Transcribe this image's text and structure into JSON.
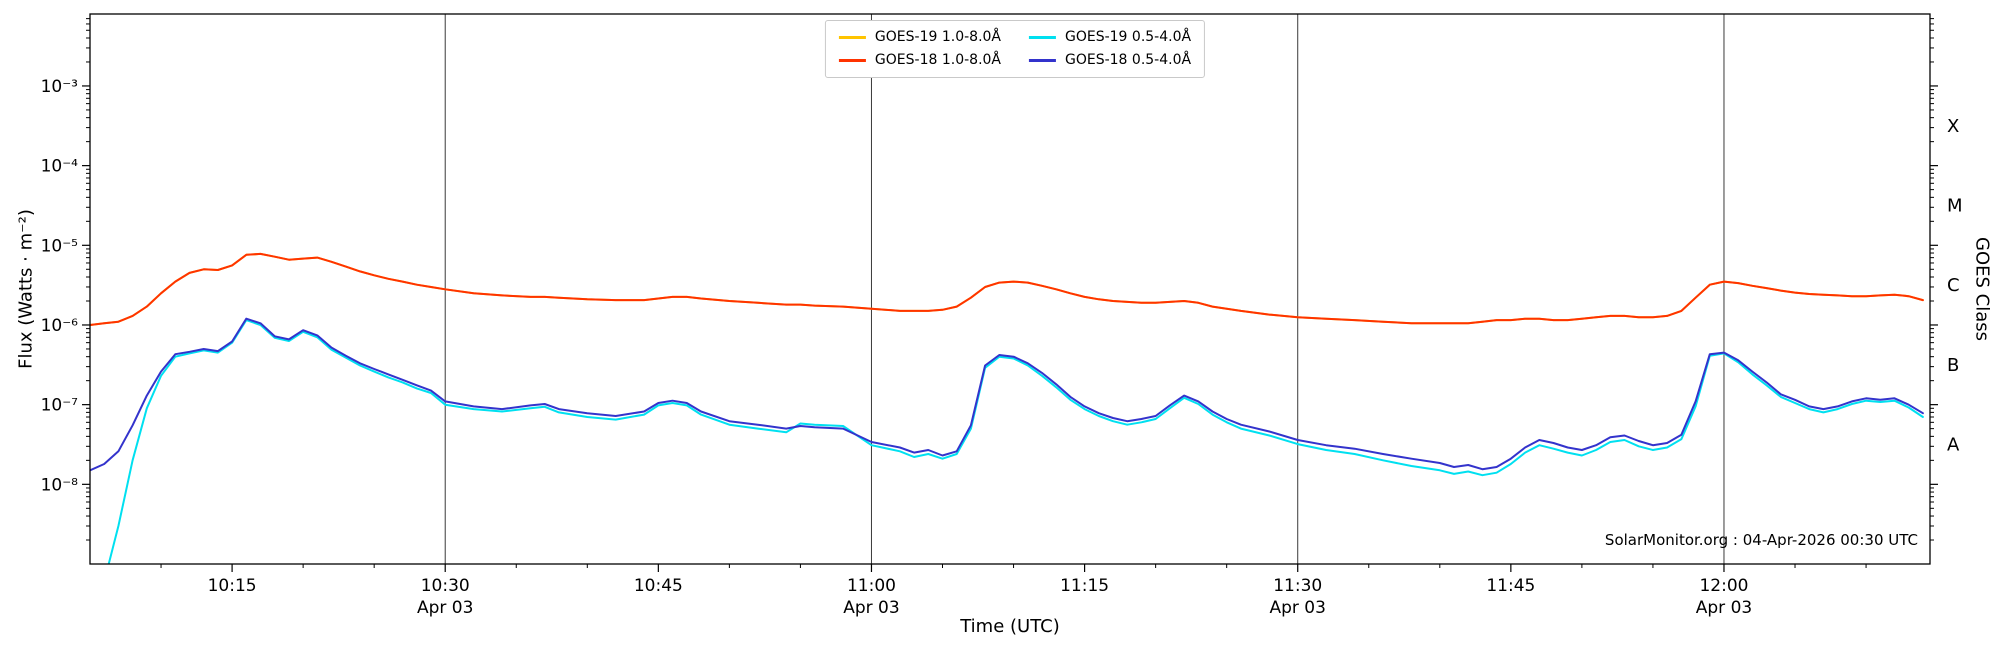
{
  "chart_data": {
    "type": "line",
    "yscale": "log",
    "title": "",
    "xlabel": "Time (UTC)",
    "ylabel_left": "Flux (Watts · m⁻²)",
    "ylabel_right": "GOES Class",
    "annotation": "SolarMonitor.org : 04-Apr-2026 00:30 UTC",
    "x_axis_note": "x values are minutes after 10:00 UTC on 03-Apr",
    "xlim": [
      5,
      134.5
    ],
    "ylim": [
      1e-09,
      0.008
    ],
    "grid": "vertical-lines-at-dated-ticks",
    "legend_position": "top-center, two columns",
    "gridline_times": [
      30,
      60,
      90,
      120
    ],
    "x_ticks": [
      {
        "t": 15,
        "label": "10:15",
        "date": ""
      },
      {
        "t": 30,
        "label": "10:30",
        "date": "Apr 03"
      },
      {
        "t": 45,
        "label": "10:45",
        "date": ""
      },
      {
        "t": 60,
        "label": "11:00",
        "date": "Apr 03"
      },
      {
        "t": 75,
        "label": "11:15",
        "date": ""
      },
      {
        "t": 90,
        "label": "11:30",
        "date": "Apr 03"
      },
      {
        "t": 105,
        "label": "11:45",
        "date": ""
      },
      {
        "t": 120,
        "label": "12:00",
        "date": "Apr 03"
      }
    ],
    "y_ticks": [
      {
        "exp": -3,
        "label": "10⁻³"
      },
      {
        "exp": -4,
        "label": "10⁻⁴"
      },
      {
        "exp": -5,
        "label": "10⁻⁵"
      },
      {
        "exp": -6,
        "label": "10⁻⁶"
      },
      {
        "exp": -7,
        "label": "10⁻⁷"
      },
      {
        "exp": -8,
        "label": "10⁻⁸"
      }
    ],
    "goes_classes": [
      {
        "label": "X",
        "flux": 0.000316
      },
      {
        "label": "M",
        "flux": 3.16e-05
      },
      {
        "label": "C",
        "flux": 3.16e-06
      },
      {
        "label": "B",
        "flux": 3.16e-07
      },
      {
        "label": "A",
        "flux": 3.16e-08
      }
    ],
    "x_minutes": [
      5,
      6,
      7,
      8,
      9,
      10,
      11,
      12,
      13,
      14,
      15,
      16,
      17,
      18,
      19,
      20,
      21,
      22,
      23,
      24,
      25,
      26,
      27,
      28,
      29,
      30,
      32,
      34,
      36,
      37,
      38,
      40,
      42,
      44,
      45,
      46,
      47,
      48,
      50,
      52,
      54,
      55,
      56,
      58,
      60,
      62,
      63,
      64,
      65,
      66,
      67,
      68,
      69,
      70,
      71,
      72,
      73,
      74,
      75,
      76,
      77,
      78,
      79,
      80,
      81,
      82,
      83,
      84,
      85,
      86,
      88,
      90,
      92,
      94,
      96,
      98,
      100,
      101,
      102,
      103,
      104,
      105,
      106,
      107,
      108,
      109,
      110,
      111,
      112,
      113,
      114,
      115,
      116,
      117,
      118,
      119,
      120,
      121,
      122,
      123,
      124,
      125,
      126,
      127,
      128,
      129,
      130,
      131,
      132,
      133,
      134
    ],
    "series": [
      {
        "name": "GOES-19 1.0-8.0Å",
        "color": "#ffc400",
        "values": [
          1e-06,
          1.05e-06,
          1.1e-06,
          1.3e-06,
          1.7e-06,
          2.5e-06,
          3.5e-06,
          4.5e-06,
          5e-06,
          4.9e-06,
          5.6e-06,
          7.6e-06,
          7.8e-06,
          7.2e-06,
          6.6e-06,
          6.8e-06,
          7e-06,
          6.2e-06,
          5.4e-06,
          4.7e-06,
          4.2e-06,
          3.8e-06,
          3.5e-06,
          3.2e-06,
          3e-06,
          2.8e-06,
          2.5e-06,
          2.35e-06,
          2.25e-06,
          2.25e-06,
          2.2e-06,
          2.1e-06,
          2.05e-06,
          2.05e-06,
          2.15e-06,
          2.25e-06,
          2.25e-06,
          2.15e-06,
          2e-06,
          1.9e-06,
          1.8e-06,
          1.8e-06,
          1.75e-06,
          1.7e-06,
          1.6e-06,
          1.5e-06,
          1.5e-06,
          1.5e-06,
          1.55e-06,
          1.7e-06,
          2.2e-06,
          3e-06,
          3.4e-06,
          3.5e-06,
          3.4e-06,
          3.1e-06,
          2.8e-06,
          2.5e-06,
          2.25e-06,
          2.1e-06,
          2e-06,
          1.95e-06,
          1.9e-06,
          1.9e-06,
          1.95e-06,
          2e-06,
          1.9e-06,
          1.7e-06,
          1.6e-06,
          1.5e-06,
          1.35e-06,
          1.25e-06,
          1.2e-06,
          1.15e-06,
          1.1e-06,
          1.05e-06,
          1.05e-06,
          1.05e-06,
          1.05e-06,
          1.1e-06,
          1.15e-06,
          1.15e-06,
          1.2e-06,
          1.2e-06,
          1.15e-06,
          1.15e-06,
          1.2e-06,
          1.25e-06,
          1.3e-06,
          1.3e-06,
          1.25e-06,
          1.25e-06,
          1.3e-06,
          1.5e-06,
          2.2e-06,
          3.2e-06,
          3.5e-06,
          3.35e-06,
          3.1e-06,
          2.9e-06,
          2.7e-06,
          2.55e-06,
          2.45e-06,
          2.4e-06,
          2.35e-06,
          2.3e-06,
          2.3e-06,
          2.35e-06,
          2.4e-06,
          2.3e-06,
          2.05e-06
        ]
      },
      {
        "name": "GOES-18 1.0-8.0Å",
        "color": "#ff3300",
        "values": [
          1e-06,
          1.05e-06,
          1.1e-06,
          1.3e-06,
          1.7e-06,
          2.5e-06,
          3.5e-06,
          4.5e-06,
          5e-06,
          4.9e-06,
          5.6e-06,
          7.6e-06,
          7.8e-06,
          7.2e-06,
          6.6e-06,
          6.8e-06,
          7e-06,
          6.2e-06,
          5.4e-06,
          4.7e-06,
          4.2e-06,
          3.8e-06,
          3.5e-06,
          3.2e-06,
          3e-06,
          2.8e-06,
          2.5e-06,
          2.35e-06,
          2.25e-06,
          2.25e-06,
          2.2e-06,
          2.1e-06,
          2.05e-06,
          2.05e-06,
          2.15e-06,
          2.25e-06,
          2.25e-06,
          2.15e-06,
          2e-06,
          1.9e-06,
          1.8e-06,
          1.8e-06,
          1.75e-06,
          1.7e-06,
          1.6e-06,
          1.5e-06,
          1.5e-06,
          1.5e-06,
          1.55e-06,
          1.7e-06,
          2.2e-06,
          3e-06,
          3.4e-06,
          3.5e-06,
          3.4e-06,
          3.1e-06,
          2.8e-06,
          2.5e-06,
          2.25e-06,
          2.1e-06,
          2e-06,
          1.95e-06,
          1.9e-06,
          1.9e-06,
          1.95e-06,
          2e-06,
          1.9e-06,
          1.7e-06,
          1.6e-06,
          1.5e-06,
          1.35e-06,
          1.25e-06,
          1.2e-06,
          1.15e-06,
          1.1e-06,
          1.05e-06,
          1.05e-06,
          1.05e-06,
          1.05e-06,
          1.1e-06,
          1.15e-06,
          1.15e-06,
          1.2e-06,
          1.2e-06,
          1.15e-06,
          1.15e-06,
          1.2e-06,
          1.25e-06,
          1.3e-06,
          1.3e-06,
          1.25e-06,
          1.25e-06,
          1.3e-06,
          1.5e-06,
          2.2e-06,
          3.2e-06,
          3.5e-06,
          3.35e-06,
          3.1e-06,
          2.9e-06,
          2.7e-06,
          2.55e-06,
          2.45e-06,
          2.4e-06,
          2.35e-06,
          2.3e-06,
          2.3e-06,
          2.35e-06,
          2.4e-06,
          2.3e-06,
          2.05e-06
        ]
      },
      {
        "name": "GOES-19 0.5-4.0Å",
        "color": "#00e0f0",
        "values": [
          1.5e-10,
          6e-10,
          3e-09,
          2e-08,
          9e-08,
          2.3e-07,
          4e-07,
          4.4e-07,
          4.8e-07,
          4.5e-07,
          6e-07,
          1.15e-06,
          1e-06,
          6.9e-07,
          6.3e-07,
          8.2e-07,
          7e-07,
          4.9e-07,
          3.9e-07,
          3.1e-07,
          2.6e-07,
          2.2e-07,
          1.9e-07,
          1.6e-07,
          1.4e-07,
          1e-07,
          8.8e-08,
          8.2e-08,
          9e-08,
          9.4e-08,
          8e-08,
          7e-08,
          6.5e-08,
          7.5e-08,
          9.8e-08,
          1.05e-07,
          9.8e-08,
          7.5e-08,
          5.6e-08,
          5e-08,
          4.5e-08,
          5.8e-08,
          5.6e-08,
          5.4e-08,
          3.1e-08,
          2.6e-08,
          2.2e-08,
          2.4e-08,
          2.1e-08,
          2.4e-08,
          5e-08,
          2.9e-07,
          4e-07,
          3.8e-07,
          3.1e-07,
          2.3e-07,
          1.65e-07,
          1.15e-07,
          8.8e-08,
          7.2e-08,
          6.2e-08,
          5.6e-08,
          6e-08,
          6.6e-08,
          9e-08,
          1.22e-07,
          1.02e-07,
          7.5e-08,
          6e-08,
          5e-08,
          4.1e-08,
          3.2e-08,
          2.7e-08,
          2.4e-08,
          2e-08,
          1.7e-08,
          1.5e-08,
          1.35e-08,
          1.45e-08,
          1.3e-08,
          1.4e-08,
          1.8e-08,
          2.5e-08,
          3.1e-08,
          2.8e-08,
          2.5e-08,
          2.3e-08,
          2.7e-08,
          3.4e-08,
          3.6e-08,
          3e-08,
          2.7e-08,
          2.9e-08,
          3.7e-08,
          9.5e-08,
          4.1e-07,
          4.4e-07,
          3.4e-07,
          2.4e-07,
          1.75e-07,
          1.25e-07,
          1.05e-07,
          8.8e-08,
          8e-08,
          8.8e-08,
          1.02e-07,
          1.12e-07,
          1.08e-07,
          1.12e-07,
          9.2e-08,
          7e-08
        ]
      },
      {
        "name": "GOES-18 0.5-4.0Å",
        "color": "#3333cc",
        "values": [
          1.5e-08,
          1.8e-08,
          2.6e-08,
          5.5e-08,
          1.3e-07,
          2.6e-07,
          4.3e-07,
          4.6e-07,
          5e-07,
          4.7e-07,
          6.2e-07,
          1.2e-06,
          1.05e-06,
          7.2e-07,
          6.6e-07,
          8.6e-07,
          7.4e-07,
          5.2e-07,
          4.1e-07,
          3.3e-07,
          2.8e-07,
          2.4e-07,
          2.05e-07,
          1.75e-07,
          1.5e-07,
          1.1e-07,
          9.5e-08,
          8.8e-08,
          9.8e-08,
          1.02e-07,
          8.8e-08,
          7.8e-08,
          7.2e-08,
          8.2e-08,
          1.05e-07,
          1.12e-07,
          1.05e-07,
          8.2e-08,
          6.2e-08,
          5.6e-08,
          5e-08,
          5.4e-08,
          5.2e-08,
          5e-08,
          3.4e-08,
          2.9e-08,
          2.5e-08,
          2.7e-08,
          2.3e-08,
          2.6e-08,
          5.5e-08,
          3.1e-07,
          4.2e-07,
          4e-07,
          3.3e-07,
          2.5e-07,
          1.8e-07,
          1.25e-07,
          9.5e-08,
          7.8e-08,
          6.8e-08,
          6.2e-08,
          6.6e-08,
          7.2e-08,
          9.8e-08,
          1.3e-07,
          1.1e-07,
          8.2e-08,
          6.6e-08,
          5.6e-08,
          4.6e-08,
          3.6e-08,
          3.1e-08,
          2.8e-08,
          2.4e-08,
          2.1e-08,
          1.85e-08,
          1.65e-08,
          1.75e-08,
          1.55e-08,
          1.65e-08,
          2.1e-08,
          2.9e-08,
          3.6e-08,
          3.3e-08,
          2.9e-08,
          2.7e-08,
          3.1e-08,
          3.9e-08,
          4.1e-08,
          3.5e-08,
          3.1e-08,
          3.3e-08,
          4.2e-08,
          1.1e-07,
          4.3e-07,
          4.5e-07,
          3.6e-07,
          2.6e-07,
          1.9e-07,
          1.35e-07,
          1.15e-07,
          9.5e-08,
          8.8e-08,
          9.5e-08,
          1.1e-07,
          1.2e-07,
          1.15e-07,
          1.2e-07,
          1e-07,
          7.8e-08
        ]
      }
    ]
  }
}
